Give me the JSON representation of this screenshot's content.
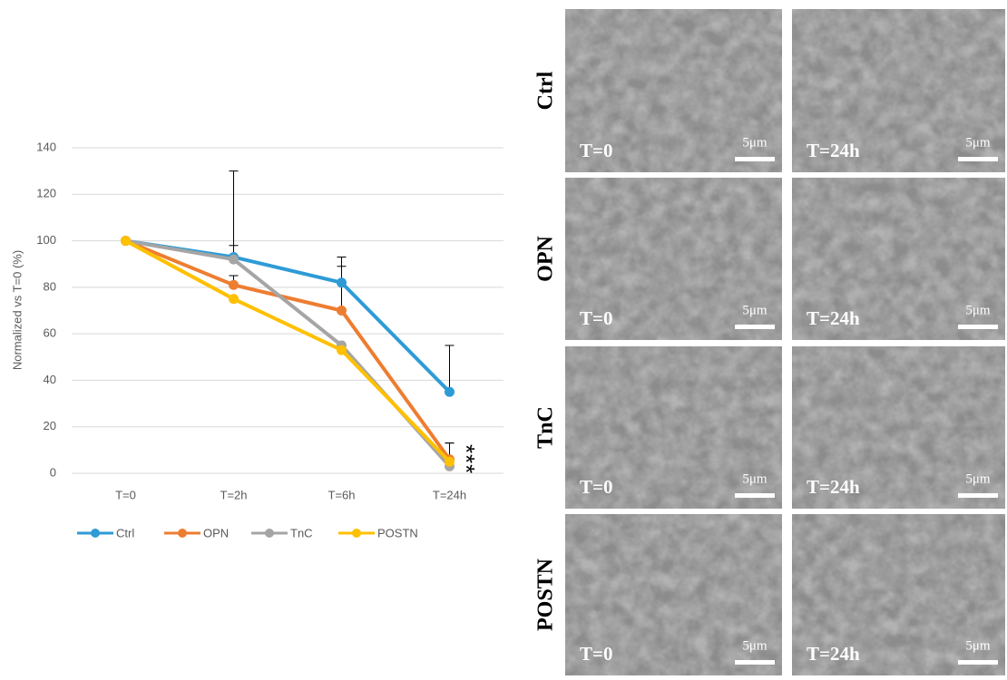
{
  "chart_data": {
    "type": "line",
    "y_label": "Normalized vs T=0 (%)",
    "categories": [
      "T=0",
      "T=2h",
      "T=6h",
      "T=24h"
    ],
    "series": [
      {
        "name": "Ctrl",
        "color": "#2e9bd6",
        "values": [
          100,
          93,
          82,
          35
        ],
        "errors": [
          null,
          5,
          11,
          20
        ]
      },
      {
        "name": "OPN",
        "color": "#ed7d31",
        "values": [
          100,
          81,
          70,
          6
        ],
        "errors": [
          null,
          4,
          19,
          7
        ]
      },
      {
        "name": "TnC",
        "color": "#a5a5a5",
        "values": [
          100,
          92,
          55,
          3
        ],
        "errors": [
          null,
          38,
          null,
          10
        ]
      },
      {
        "name": "POSTN",
        "color": "#ffc000",
        "values": [
          100,
          75,
          53,
          5
        ],
        "errors": [
          null,
          null,
          null,
          null
        ]
      }
    ],
    "annotation": "***",
    "ylim": [
      0,
      140
    ],
    "yticks": [
      0,
      20,
      40,
      60,
      80,
      100,
      120,
      140
    ],
    "grid": true,
    "legend": "bottom"
  },
  "panels": {
    "rows": [
      "Ctrl",
      "OPN",
      "TnC",
      "POSTN"
    ],
    "columns": [
      "T=0",
      "T=24h"
    ],
    "scale": "5μm"
  }
}
